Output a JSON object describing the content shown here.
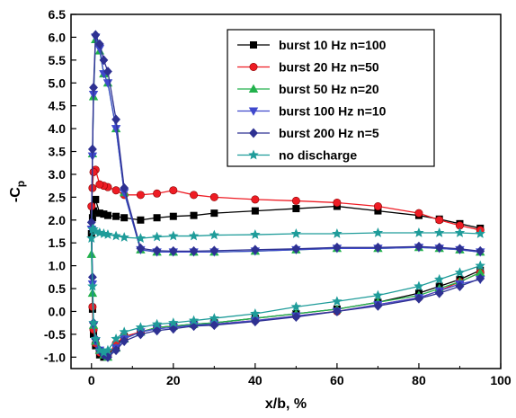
{
  "chart_data": {
    "type": "line",
    "xlabel": "x/b, %",
    "ylabel": "-C",
    "ylabel_subscript": "p",
    "xlim": [
      -5,
      100
    ],
    "ylim": [
      -1.25,
      6.5
    ],
    "x_ticks": [
      0,
      20,
      40,
      60,
      80,
      100
    ],
    "y_ticks": [
      -1.0,
      -0.5,
      0.0,
      0.5,
      1.0,
      1.5,
      2.0,
      2.5,
      3.0,
      3.5,
      4.0,
      4.5,
      5.0,
      5.5,
      6.0,
      6.5
    ],
    "x_tick_labels": [
      "0",
      "20",
      "40",
      "60",
      "80",
      "100"
    ],
    "y_tick_labels": [
      "-1.0",
      "-0.5",
      "0.0",
      "0.5",
      "1.0",
      "1.5",
      "2.0",
      "2.5",
      "3.0",
      "3.5",
      "4.0",
      "4.5",
      "5.0",
      "5.5",
      "6.0",
      "6.5"
    ],
    "grid": false,
    "legend_position": "top-right",
    "series": [
      {
        "name": "burst 10 Hz n=100",
        "color": "#000000",
        "marker": "square",
        "x": [
          95,
          90,
          85,
          80,
          70,
          60,
          50,
          40,
          30,
          25,
          20,
          16,
          12,
          8,
          6,
          4,
          3,
          2,
          1,
          0.5,
          0.25,
          0,
          0.25,
          0.5,
          1,
          2,
          3,
          4,
          6,
          8,
          12,
          16,
          20,
          25,
          30,
          40,
          50,
          60,
          70,
          80,
          85,
          90,
          95
        ],
        "y": [
          1.82,
          1.92,
          2.02,
          2.1,
          2.2,
          2.3,
          2.25,
          2.2,
          2.15,
          2.1,
          2.08,
          2.05,
          2.0,
          2.05,
          2.08,
          2.1,
          2.13,
          2.15,
          2.45,
          2.2,
          2.05,
          1.7,
          0.05,
          -0.5,
          -0.75,
          -0.95,
          -1.0,
          -0.95,
          -0.75,
          -0.55,
          -0.45,
          -0.35,
          -0.32,
          -0.28,
          -0.25,
          -0.15,
          -0.05,
          0.05,
          0.2,
          0.4,
          0.55,
          0.7,
          0.9
        ]
      },
      {
        "name": "burst 20 Hz n=50",
        "color": "#ee1c24",
        "marker": "circle",
        "x": [
          95,
          90,
          85,
          80,
          70,
          60,
          50,
          40,
          30,
          25,
          20,
          16,
          12,
          8,
          6,
          4,
          3,
          2,
          1,
          0.5,
          0.25,
          0,
          0.25,
          0.5,
          1,
          2,
          3,
          4,
          6,
          8,
          12,
          16,
          20,
          25,
          30,
          40,
          50,
          60,
          70,
          80,
          85,
          90,
          95
        ],
        "y": [
          1.78,
          1.88,
          2.0,
          2.15,
          2.3,
          2.38,
          2.42,
          2.45,
          2.5,
          2.55,
          2.65,
          2.58,
          2.55,
          2.55,
          2.65,
          2.72,
          2.75,
          2.78,
          3.1,
          3.05,
          2.7,
          2.3,
          0.1,
          -0.4,
          -0.7,
          -0.9,
          -0.95,
          -0.95,
          -0.7,
          -0.55,
          -0.45,
          -0.35,
          -0.32,
          -0.3,
          -0.28,
          -0.2,
          -0.1,
          0.0,
          0.15,
          0.3,
          0.45,
          0.65,
          0.85
        ]
      },
      {
        "name": "burst 50 Hz n=20",
        "color": "#22b14c",
        "marker": "triangle-up",
        "x": [
          95,
          90,
          85,
          80,
          70,
          60,
          50,
          40,
          30,
          25,
          20,
          16,
          12,
          8,
          6,
          4,
          3,
          2,
          1,
          0.5,
          0.25,
          0,
          0.25,
          0.5,
          1,
          2,
          3,
          4,
          6,
          8,
          12,
          16,
          20,
          25,
          30,
          40,
          50,
          60,
          70,
          80,
          85,
          90,
          95
        ],
        "y": [
          1.3,
          1.35,
          1.38,
          1.4,
          1.38,
          1.38,
          1.35,
          1.32,
          1.3,
          1.3,
          1.3,
          1.3,
          1.35,
          2.6,
          4.0,
          5.0,
          5.2,
          5.7,
          5.95,
          4.7,
          3.45,
          1.25,
          0.4,
          -0.3,
          -0.65,
          -0.85,
          -0.95,
          -1.0,
          -0.8,
          -0.6,
          -0.45,
          -0.35,
          -0.32,
          -0.28,
          -0.25,
          -0.15,
          -0.05,
          0.05,
          0.2,
          0.35,
          0.5,
          0.65,
          0.85
        ]
      },
      {
        "name": "burst 100 Hz n=10",
        "color": "#3f48cc",
        "marker": "triangle-down",
        "x": [
          95,
          90,
          85,
          80,
          70,
          60,
          50,
          40,
          30,
          25,
          20,
          16,
          12,
          8,
          6,
          4,
          3,
          2,
          1,
          0.5,
          0.25,
          0,
          0.25,
          0.5,
          1,
          2,
          3,
          4,
          6,
          8,
          12,
          16,
          20,
          25,
          30,
          40,
          50,
          60,
          70,
          80,
          85,
          90,
          95
        ],
        "y": [
          1.3,
          1.35,
          1.38,
          1.4,
          1.38,
          1.38,
          1.35,
          1.32,
          1.3,
          1.3,
          1.3,
          1.3,
          1.35,
          2.6,
          4.0,
          5.0,
          5.2,
          5.75,
          6.0,
          4.75,
          3.4,
          1.8,
          0.6,
          -0.3,
          -0.65,
          -0.85,
          -0.95,
          -1.0,
          -0.8,
          -0.6,
          -0.45,
          -0.38,
          -0.35,
          -0.3,
          -0.28,
          -0.2,
          -0.1,
          0.0,
          0.15,
          0.3,
          0.45,
          0.6,
          0.7
        ]
      },
      {
        "name": "burst 200 Hz n=5",
        "color": "#2e3192",
        "marker": "diamond",
        "x": [
          95,
          90,
          85,
          80,
          70,
          60,
          50,
          40,
          30,
          25,
          20,
          16,
          12,
          8,
          6,
          4,
          3,
          2,
          1,
          0.5,
          0.25,
          0,
          0.25,
          0.5,
          1,
          2,
          3,
          4,
          6,
          8,
          12,
          16,
          20,
          25,
          30,
          40,
          50,
          60,
          70,
          80,
          85,
          90,
          95
        ],
        "y": [
          1.32,
          1.37,
          1.4,
          1.42,
          1.4,
          1.4,
          1.37,
          1.35,
          1.33,
          1.32,
          1.32,
          1.33,
          1.38,
          2.7,
          4.2,
          5.25,
          5.5,
          5.85,
          6.05,
          4.9,
          3.55,
          1.95,
          0.75,
          -0.25,
          -0.6,
          -0.85,
          -0.95,
          -1.0,
          -0.85,
          -0.65,
          -0.5,
          -0.42,
          -0.38,
          -0.32,
          -0.3,
          -0.22,
          -0.12,
          0.0,
          0.12,
          0.28,
          0.4,
          0.55,
          0.72
        ]
      },
      {
        "name": "no discharge",
        "color": "#1f9c9a",
        "marker": "star",
        "x": [
          95,
          90,
          85,
          80,
          70,
          60,
          50,
          40,
          30,
          25,
          20,
          16,
          12,
          8,
          6,
          4,
          3,
          2,
          1,
          0.5,
          0.25,
          0,
          0.25,
          0.5,
          1,
          2,
          3,
          4,
          6,
          8,
          12,
          16,
          20,
          25,
          30,
          40,
          50,
          60,
          70,
          80,
          85,
          90,
          95
        ],
        "y": [
          1.7,
          1.72,
          1.72,
          1.72,
          1.72,
          1.7,
          1.7,
          1.68,
          1.67,
          1.65,
          1.65,
          1.63,
          1.6,
          1.62,
          1.65,
          1.68,
          1.7,
          1.72,
          1.75,
          1.8,
          1.8,
          1.6,
          0.55,
          -0.25,
          -0.6,
          -0.85,
          -0.9,
          -0.85,
          -0.6,
          -0.45,
          -0.35,
          -0.28,
          -0.25,
          -0.2,
          -0.15,
          -0.05,
          0.1,
          0.22,
          0.35,
          0.55,
          0.7,
          0.85,
          1.0
        ]
      }
    ]
  }
}
